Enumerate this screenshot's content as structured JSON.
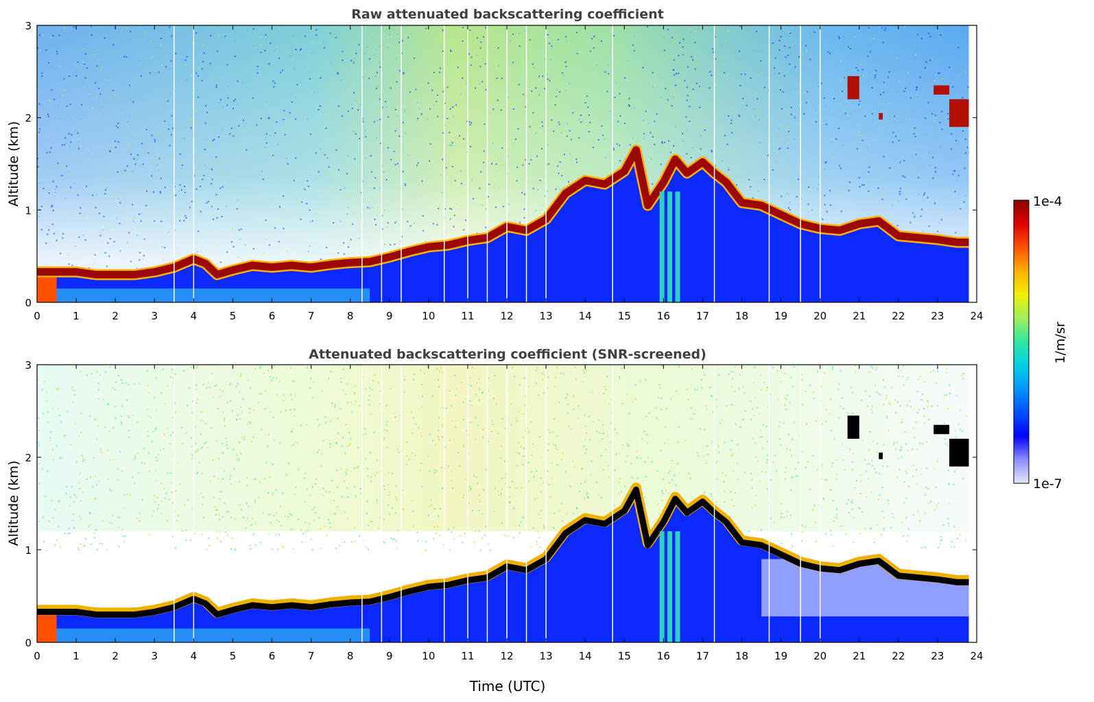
{
  "chart_data": [
    {
      "type": "heatmap",
      "title": "Raw attenuated backscattering coefficient",
      "xlabel": "",
      "ylabel": "Altitude (km)",
      "xlim": [
        0,
        24
      ],
      "ylim": [
        0,
        3
      ],
      "xticks": [
        "0",
        "1",
        "2",
        "3",
        "4",
        "5",
        "6",
        "7",
        "8",
        "9",
        "10",
        "11",
        "12",
        "13",
        "14",
        "15",
        "16",
        "17",
        "18",
        "19",
        "20",
        "21",
        "22",
        "23",
        "24"
      ],
      "yticks": [
        "0",
        "1",
        "2",
        "3"
      ],
      "layer_top_km": {
        "time": [
          0,
          0.5,
          1,
          1.5,
          2,
          2.5,
          3,
          3.5,
          4,
          4.3,
          4.6,
          5,
          5.5,
          6,
          6.5,
          7,
          7.5,
          8,
          8.5,
          9,
          9.5,
          10,
          10.5,
          11,
          11.5,
          12,
          12.5,
          13,
          13.5,
          14,
          14.5,
          15,
          15.3,
          15.6,
          16,
          16.3,
          16.6,
          17,
          17.3,
          17.6,
          18,
          18.5,
          19,
          19.5,
          20,
          20.5,
          21,
          21.5,
          22,
          22.5,
          23,
          23.5,
          23.8
        ],
        "altitude": [
          0.33,
          0.33,
          0.33,
          0.3,
          0.3,
          0.3,
          0.33,
          0.38,
          0.47,
          0.42,
          0.3,
          0.35,
          0.4,
          0.38,
          0.4,
          0.38,
          0.41,
          0.43,
          0.44,
          0.49,
          0.55,
          0.6,
          0.62,
          0.67,
          0.7,
          0.82,
          0.78,
          0.9,
          1.18,
          1.32,
          1.28,
          1.42,
          1.65,
          1.05,
          1.3,
          1.55,
          1.4,
          1.52,
          1.4,
          1.3,
          1.08,
          1.05,
          0.95,
          0.85,
          0.8,
          0.78,
          0.85,
          0.88,
          0.72,
          0.7,
          0.68,
          0.65,
          0.65
        ]
      },
      "cloud_patches": [
        {
          "time_start": 20.7,
          "time_end": 21.0,
          "alt_bottom": 2.2,
          "alt_top": 2.45
        },
        {
          "time_start": 21.5,
          "time_end": 21.6,
          "alt_bottom": 1.98,
          "alt_top": 2.05
        },
        {
          "time_start": 22.9,
          "time_end": 23.3,
          "alt_bottom": 2.25,
          "alt_top": 2.35
        },
        {
          "time_start": 23.3,
          "time_end": 23.8,
          "alt_bottom": 1.9,
          "alt_top": 2.2
        }
      ],
      "data_gaps_time": [
        3.5,
        4.0,
        8.3,
        8.8,
        9.3,
        10.4,
        11.0,
        11.5,
        12.0,
        12.5,
        13.0,
        14.7,
        17.3,
        18.7,
        19.5,
        20.0
      ]
    },
    {
      "type": "heatmap",
      "title": "Attenuated backscattering coefficient (SNR-screened)",
      "xlabel": "Time (UTC)",
      "ylabel": "Altitude (km)",
      "xlim": [
        0,
        24
      ],
      "ylim": [
        0,
        3
      ],
      "xticks": [
        "0",
        "1",
        "2",
        "3",
        "4",
        "5",
        "6",
        "7",
        "8",
        "9",
        "10",
        "11",
        "12",
        "13",
        "14",
        "15",
        "16",
        "17",
        "18",
        "19",
        "20",
        "21",
        "22",
        "23",
        "24"
      ],
      "yticks": [
        "0",
        "1",
        "2",
        "3"
      ],
      "screened_floor_km": 0.28
    }
  ],
  "colorbar": {
    "label": "1/m/sr",
    "max_label": "1e-4",
    "min_label": "1e-7",
    "colors": [
      "#e8e8f8",
      "#8c8cff",
      "#0000ff",
      "#0050ff",
      "#0096ff",
      "#00d0e8",
      "#30e8a0",
      "#a0f060",
      "#f0f000",
      "#ffb000",
      "#ff5000",
      "#e00000",
      "#8b0000"
    ]
  }
}
